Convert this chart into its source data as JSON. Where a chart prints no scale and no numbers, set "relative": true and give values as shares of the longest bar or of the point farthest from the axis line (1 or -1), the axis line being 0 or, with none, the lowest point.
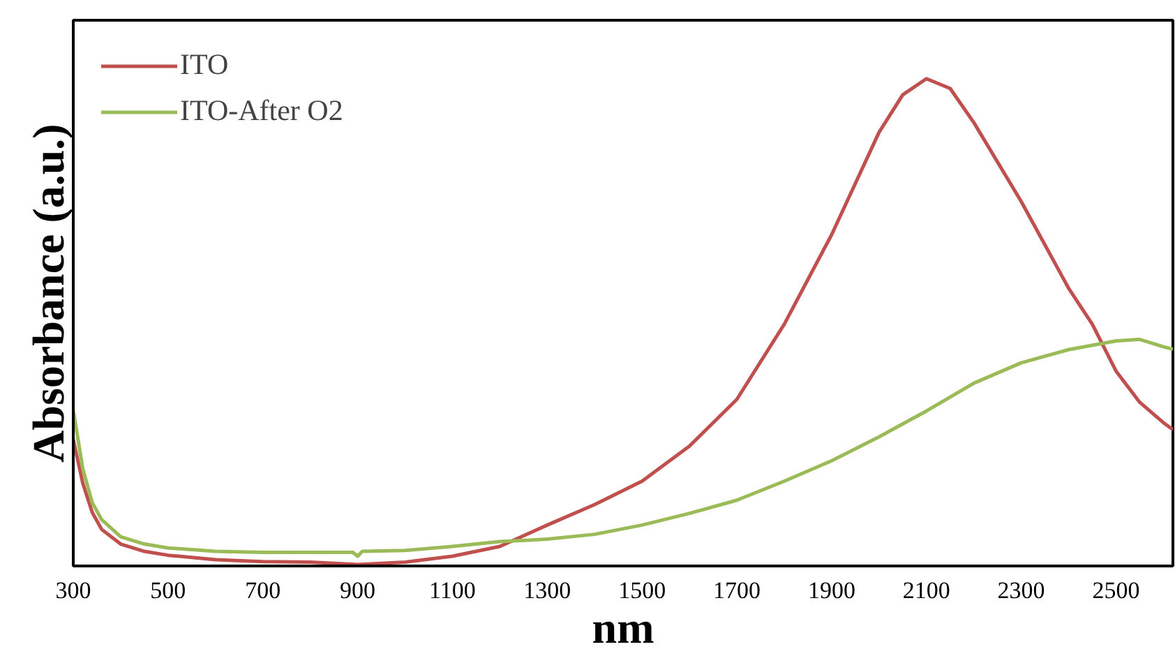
{
  "chart_data": {
    "type": "line",
    "xlabel": "nm",
    "ylabel": "Absorbance (a.u.)",
    "relative": true,
    "xlim": [
      300,
      2620
    ],
    "xticks": [
      300,
      500,
      700,
      900,
      1100,
      1300,
      1500,
      1700,
      1900,
      2100,
      2300,
      2500
    ],
    "grid": false,
    "legend": "top left",
    "marker": "none",
    "line_style": "solid",
    "series": [
      {
        "name": "ITO",
        "color": "#c0504d",
        "x": [
          300,
          320,
          340,
          360,
          400,
          450,
          500,
          600,
          700,
          800,
          900,
          1000,
          1100,
          1200,
          1300,
          1400,
          1500,
          1600,
          1700,
          1800,
          1900,
          2000,
          2050,
          2100,
          2150,
          2200,
          2300,
          2400,
          2450,
          2500,
          2550,
          2600,
          2620
        ],
        "values": [
          0.26,
          0.17,
          0.11,
          0.075,
          0.045,
          0.03,
          0.022,
          0.013,
          0.009,
          0.008,
          0.003,
          0.008,
          0.02,
          0.04,
          0.084,
          0.126,
          0.174,
          0.246,
          0.342,
          0.496,
          0.68,
          0.89,
          0.967,
          1.0,
          0.98,
          0.91,
          0.748,
          0.57,
          0.496,
          0.4,
          0.336,
          0.294,
          0.28
        ]
      },
      {
        "name": "ITO-After O2",
        "color": "#9bbb59",
        "x": [
          300,
          320,
          340,
          360,
          400,
          450,
          500,
          600,
          700,
          800,
          890,
          900,
          910,
          1000,
          1100,
          1200,
          1300,
          1400,
          1500,
          1600,
          1700,
          1800,
          1900,
          2000,
          2100,
          2200,
          2300,
          2400,
          2450,
          2500,
          2550,
          2600,
          2620
        ],
        "values": [
          0.32,
          0.2,
          0.13,
          0.095,
          0.06,
          0.045,
          0.037,
          0.03,
          0.028,
          0.028,
          0.028,
          0.02,
          0.03,
          0.032,
          0.04,
          0.05,
          0.055,
          0.065,
          0.084,
          0.108,
          0.135,
          0.174,
          0.216,
          0.265,
          0.318,
          0.375,
          0.417,
          0.444,
          0.453,
          0.462,
          0.465,
          0.45,
          0.445
        ]
      }
    ]
  }
}
